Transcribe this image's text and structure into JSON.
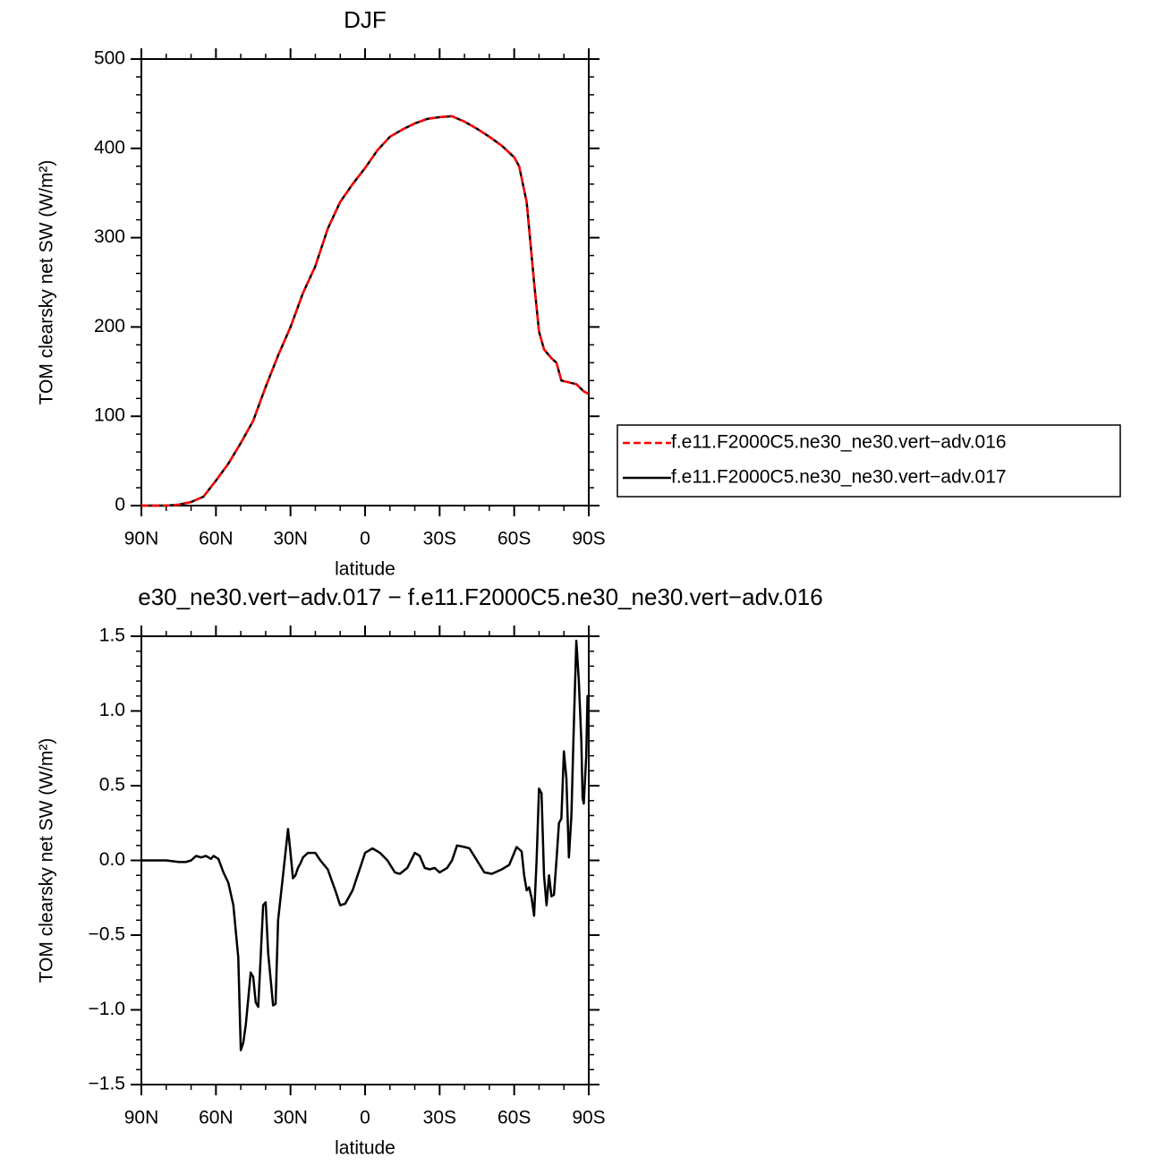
{
  "chart_data": [
    {
      "type": "line",
      "title": "DJF",
      "xlabel": "latitude",
      "ylabel": "TOM clearsky net SW (W/m²)",
      "xlim": [
        90,
        -90
      ],
      "xticks": [
        {
          "value": 90,
          "label": "90N"
        },
        {
          "value": 60,
          "label": "60N"
        },
        {
          "value": 30,
          "label": "30N"
        },
        0,
        {
          "value": -30,
          "label": "30S"
        },
        {
          "value": -60,
          "label": "60S"
        },
        {
          "value": -90,
          "label": "90S"
        }
      ],
      "ylim": [
        0,
        500
      ],
      "yticks": [
        0,
        100,
        200,
        300,
        400,
        500
      ],
      "legend": "right",
      "x": [
        90,
        80,
        75,
        70,
        65,
        60,
        55,
        50,
        45,
        40,
        35,
        30,
        25,
        20,
        15,
        10,
        5,
        0,
        -5,
        -10,
        -15,
        -20,
        -25,
        -30,
        -35,
        -40,
        -45,
        -50,
        -55,
        -60,
        -62,
        -65,
        -68,
        -70,
        -72,
        -75,
        -77,
        -79,
        -82,
        -85,
        -88,
        -90
      ],
      "series": [
        {
          "name": "f.e11.F2000C5.ne30_ne30.vert−adv.016",
          "color": "#ff0000",
          "dash": true,
          "values": [
            0,
            0,
            1,
            4,
            10,
            28,
            47,
            70,
            95,
            133,
            168,
            200,
            238,
            268,
            310,
            340,
            360,
            378,
            398,
            413,
            421,
            428,
            433,
            435,
            436,
            430,
            422,
            413,
            403,
            390,
            380,
            340,
            250,
            195,
            175,
            165,
            160,
            140,
            138,
            136,
            128,
            125
          ]
        },
        {
          "name": "f.e11.F2000C5.ne30_ne30.vert−adv.017",
          "color": "#000000",
          "dash": false,
          "values": [
            0,
            0,
            1,
            4,
            10,
            28,
            47,
            70,
            95,
            133,
            168,
            200,
            238,
            268,
            310,
            340,
            360,
            378,
            398,
            413,
            421,
            428,
            433,
            435,
            436,
            430,
            422,
            413,
            403,
            390,
            380,
            340,
            250,
            195,
            175,
            165,
            160,
            140,
            138,
            136,
            128,
            125
          ]
        }
      ]
    },
    {
      "type": "line",
      "title": "e30_ne30.vert−adv.017 − f.e11.F2000C5.ne30_ne30.vert−adv.016",
      "xlabel": "latitude",
      "ylabel": "TOM clearsky net SW (W/m²)",
      "xlim": [
        90,
        -90
      ],
      "xticks": [
        {
          "value": 90,
          "label": "90N"
        },
        {
          "value": 60,
          "label": "60N"
        },
        {
          "value": 30,
          "label": "30N"
        },
        0,
        {
          "value": -30,
          "label": "30S"
        },
        {
          "value": -60,
          "label": "60S"
        },
        {
          "value": -90,
          "label": "90S"
        }
      ],
      "ylim": [
        -1.5,
        1.5
      ],
      "yticks": [
        {
          "value": -1.5,
          "label": "−1.5"
        },
        {
          "value": -1,
          "label": "−1.0"
        },
        {
          "value": -0.5,
          "label": "−0.5"
        },
        {
          "value": 0,
          "label": "0.0"
        },
        0.5,
        {
          "value": 1,
          "label": "1.0"
        },
        1.5
      ],
      "x": [
        90,
        80,
        75,
        72,
        70,
        68,
        66,
        64,
        62,
        61,
        59,
        57,
        55,
        53,
        51,
        50,
        49,
        48,
        47,
        46,
        45,
        44,
        43,
        42,
        41,
        40,
        39,
        37,
        36,
        35,
        33,
        31,
        30,
        29,
        28,
        27,
        26,
        25,
        23,
        20,
        18,
        15,
        12,
        10,
        8,
        5,
        0,
        -3,
        -6,
        -9,
        -12,
        -14,
        -17,
        -20,
        -22,
        -24,
        -26,
        -28,
        -30,
        -33,
        -35,
        -37,
        -40,
        -42,
        -45,
        -48,
        -51,
        -55,
        -58,
        -61,
        -63,
        -64,
        -65,
        -66,
        -67,
        -68,
        -69,
        -70,
        -71,
        -72,
        -73,
        -74,
        -75,
        -76,
        -77,
        -78,
        -79,
        -80,
        -81,
        -82,
        -83,
        -84,
        -85,
        -86,
        -87,
        -87.5,
        -88,
        -89,
        -89.5,
        -90
      ],
      "series": [
        {
          "color": "#000000",
          "dash": false,
          "values": [
            0,
            0,
            -0.01,
            -0.01,
            0,
            0.03,
            0.02,
            0.03,
            0.01,
            0.03,
            0.01,
            -0.08,
            -0.15,
            -0.3,
            -0.65,
            -1.27,
            -1.22,
            -1.1,
            -0.93,
            -0.75,
            -0.78,
            -0.95,
            -0.98,
            -0.65,
            -0.3,
            -0.28,
            -0.62,
            -0.97,
            -0.96,
            -0.4,
            -0.1,
            0.21,
            0.05,
            -0.12,
            -0.1,
            -0.05,
            -0.02,
            0.02,
            0.05,
            0.05,
            0,
            -0.06,
            -0.2,
            -0.3,
            -0.29,
            -0.2,
            0.05,
            0.08,
            0.05,
            0,
            -0.08,
            -0.09,
            -0.05,
            0.05,
            0.03,
            -0.05,
            -0.06,
            -0.05,
            -0.08,
            -0.05,
            0,
            0.1,
            0.09,
            0.08,
            0,
            -0.08,
            -0.09,
            -0.06,
            -0.03,
            0.09,
            0.06,
            -0.1,
            -0.2,
            -0.18,
            -0.25,
            -0.37,
            0,
            0.48,
            0.45,
            -0.1,
            -0.3,
            -0.1,
            -0.24,
            -0.23,
            0,
            0.25,
            0.28,
            0.73,
            0.55,
            0.02,
            0.3,
            0.9,
            1.47,
            1.2,
            0.8,
            0.42,
            0.38,
            0.7,
            1.1,
            1.08
          ]
        }
      ]
    }
  ]
}
